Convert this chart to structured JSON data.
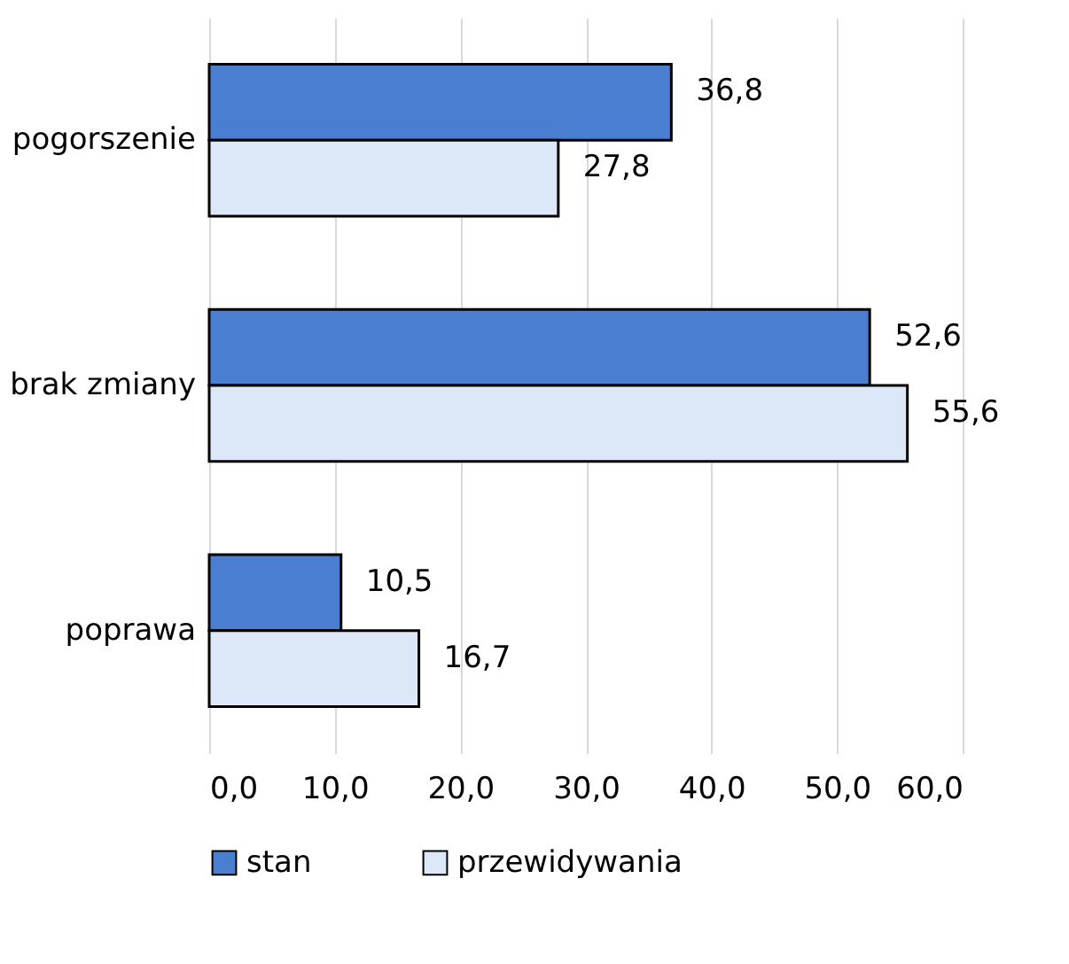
{
  "chart_data": {
    "type": "bar",
    "orientation": "horizontal",
    "categories": [
      "pogorszenie",
      "brak zmiany",
      "poprawa"
    ],
    "series": [
      {
        "name": "stan",
        "color": "#4a7ed0",
        "values": [
          36.8,
          52.6,
          10.5
        ],
        "value_labels": [
          "36,8",
          "52,6",
          "10,5"
        ]
      },
      {
        "name": "przewidywania",
        "color": "#dce8f8",
        "values": [
          27.8,
          55.6,
          16.7
        ],
        "value_labels": [
          "27,8",
          "55,6",
          "16,7"
        ]
      }
    ],
    "xlim": [
      0,
      60
    ],
    "xticks": [
      {
        "value": 0,
        "label": "0,0"
      },
      {
        "value": 10,
        "label": "10,0"
      },
      {
        "value": 20,
        "label": "20,0"
      },
      {
        "value": 30,
        "label": "30,0"
      },
      {
        "value": 40,
        "label": "40,0"
      },
      {
        "value": 50,
        "label": "50,0"
      },
      {
        "value": 60,
        "label": "60,0"
      }
    ],
    "grid": "x",
    "legend": "bottom"
  }
}
